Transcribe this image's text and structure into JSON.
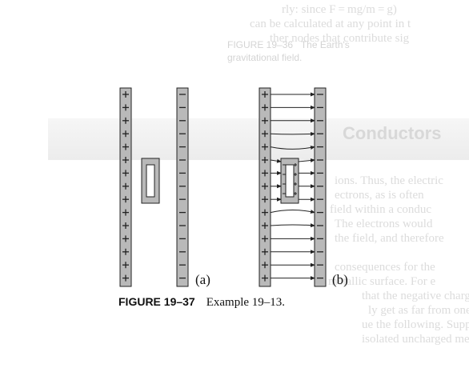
{
  "figure": {
    "panel_labels": [
      "(a)",
      "(b)"
    ],
    "caption_label": "FIGURE 19–37",
    "caption_text": "Example 19–13."
  },
  "bleed_through": {
    "top_line_1": "rly: since F = mg/m = g)",
    "top_line_2": "can be calculated at any point in t",
    "top_line_3": "ther nodes that contribute sig",
    "side_caption_1": "FIGURE 19–36   The Earth's",
    "side_caption_2": "gravitational field.",
    "heading": "Conductors",
    "body_lines": [
      "ions. Thus, the electric",
      "ectrons, as is often",
      "field within a conduc",
      "The electrons would",
      "the field, and therefore",
      "consequences for the",
      "metallic surface. For e",
      "that the negative charges",
      "ly get as far from one",
      "ue the following. Suppose",
      "isolated uncharged metal"
    ]
  },
  "colors": {
    "plate_fill": "#b9b9b9",
    "line": "#222222"
  }
}
